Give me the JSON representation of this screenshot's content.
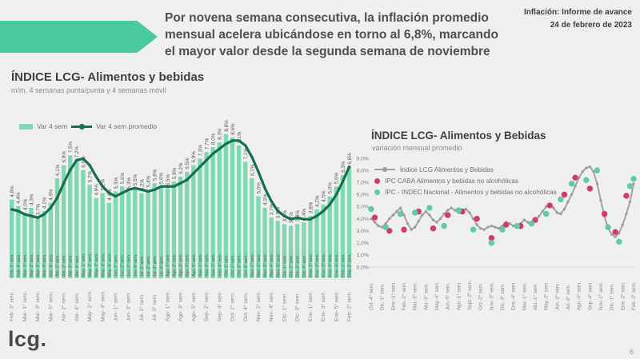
{
  "header": {
    "report_title": "Inflación: Informe de avance",
    "report_date": "24 de febrero de 2023",
    "headline": "Por novena semana consecutiva, la inflación promedio\nmensual acelera ubicándose en torno al 6,8%, marcando\nel mayor valor desde la segunda semana de noviembre"
  },
  "footer": {
    "logo": "lcg.",
    "page": "6"
  },
  "colors": {
    "background": "#efeff0",
    "accent_arrow": "#4bc99e",
    "bar_fill": "#7ed9b2",
    "avg_line": "#14714d",
    "lcg_line": "#a3a3a3",
    "caba_dot": "#d13a6e",
    "indec_dot": "#5ecda3",
    "label_dark": "#555555",
    "label_gray": "#8a8a8a"
  },
  "chart_data": [
    {
      "type": "bar",
      "title": "ÍNDICE LCG- Alimentos y bebidas",
      "subtitle": "m/m. 4 semanas punta/punta y 4 semanas móvil",
      "unit": "%",
      "ylim": [
        0,
        9.2
      ],
      "grid": false,
      "value_labels": true,
      "tick_every": 2,
      "legend_position": "top-left",
      "categories": [
        "Feb- 3° sem.",
        "Feb- 4° sem.",
        "Mar- 1° sem.",
        "Mar- 2° sem.",
        "Mar- 3° sem.",
        "Mar- 4° sem.",
        "Mar- 5° sem.",
        "Abr- 1° sem.",
        "Abr- 2° sem.",
        "Abr- 3° sem.",
        "Abr- 4° sem.",
        "May- 1° sem.",
        "May- 2° sem.",
        "May- 3° sem.",
        "May- 4° sem.",
        "May- 5° sem.",
        "Jun- 1° sem.",
        "Jun- 2° sem.",
        "Jun- 3° sem.",
        "Jun- 4° sem.",
        "Jul- 1° sem.",
        "Jul- 2° sem.",
        "Jul- 3° sem.",
        "Jul- 4° sem.",
        "Ago- 1° sem.",
        "Ago- 2° sem.",
        "Ago- 3° sem.",
        "Ago- 4° sem.",
        "Ago- 5° sem.",
        "Sep- 1° sem.",
        "Sep- 2° sem.",
        "Sep- 3° sem.",
        "Sep- 4° sem.",
        "Oct- 1° sem.",
        "Oct- 2° sem.",
        "Oct- 3° sem.",
        "Oct- 4° sem.",
        "Nov- 1° sem.",
        "Nov- 2° sem.",
        "Nov- 3° sem.",
        "Nov- 4° sem.",
        "Nov- 5° sem.",
        "Dic- 1° sem.",
        "Dic- 2° sem.",
        "Dic- 3° sem.",
        "Dic- 4° sem.",
        "Ene- 1° sem.",
        "Ene- 2° sem.",
        "Ene- 3° sem.",
        "Ene- 4° sem.",
        "Ene- 5° sem.",
        "Feb- 1° sem.",
        "Feb- 2° sem."
      ],
      "series": [
        {
          "name": "Var 4 sem",
          "type": "bar",
          "values": [
            4.8,
            4.4,
            4.0,
            4.3,
            3.7,
            4.1,
            4.6,
            6.1,
            6.9,
            7.5,
            7.2,
            6.6,
            5.7,
            4.9,
            5.2,
            4.6,
            5.3,
            5.6,
            5.3,
            5.5,
            5.2,
            5.4,
            5.8,
            5.6,
            5.5,
            5.9,
            6.2,
            6.5,
            6.9,
            7.3,
            7.7,
            8.0,
            8.3,
            8.8,
            8.6,
            8.1,
            7.1,
            6.1,
            5.0,
            4.3,
            3.7,
            3.5,
            3.3,
            3.2,
            3.3,
            3.4,
            3.8,
            4.2,
            4.5,
            5.0,
            5.6,
            6.3,
            6.8
          ]
        },
        {
          "name": "Var 4 sem promedio",
          "type": "line",
          "values": [
            4.2,
            4.1,
            3.9,
            3.8,
            3.7,
            3.9,
            4.3,
            4.9,
            5.8,
            6.6,
            7.2,
            7.3,
            6.9,
            6.2,
            5.6,
            5.2,
            5.0,
            5.2,
            5.4,
            5.5,
            5.4,
            5.3,
            5.4,
            5.6,
            5.6,
            5.6,
            5.8,
            6.0,
            6.4,
            6.8,
            7.2,
            7.6,
            7.9,
            8.2,
            8.4,
            8.4,
            8.1,
            7.4,
            6.5,
            5.5,
            4.7,
            4.1,
            3.8,
            3.6,
            3.7,
            3.6,
            3.6,
            3.8,
            4.1,
            4.5,
            5.1,
            5.9,
            6.8
          ]
        }
      ]
    },
    {
      "type": "line",
      "title": "ÍNDICE LCG- Alimentos y Bebidas",
      "subtitle": "variación mensual promedio",
      "unit": "%",
      "ylim": [
        0,
        9
      ],
      "ytick_step": 1,
      "grid": false,
      "tick_every": 3,
      "legend_position": "top-left-inside",
      "x_tick_labels": [
        "Oct.-4° sem.",
        "Dic.-1° sem.",
        "Ene.-1° sem.",
        "Feb.-2° sem.",
        "Mar.-3° sem.",
        "Abr.-3° sem.",
        "May.-4° sem.",
        "Jun.-5° sem.",
        "Ago.-1° sem.",
        "Sept.-2° sem.",
        "Oct.-2° sem.",
        "Nov.-3° sem.",
        "Dic.-3° sem.",
        "Ene.-4° sem.",
        "Mar.-1° sem.",
        "Abr.-1° sem.",
        "May.-2° sem.",
        "Jun.-2° sem.",
        "Jul.-3° sem.",
        "Ago.-4° sem.",
        "Sep.-4° sem.",
        "Nov.-1° sem.",
        "Dic.-1° sem.",
        "Ene.-2° sem.",
        "Feb.-2° sem."
      ],
      "series": [
        {
          "name": "Índice LCG Alimentos y Bebidas",
          "type": "line",
          "color_key": "lcg_line",
          "values": [
            4.0,
            3.7,
            3.4,
            3.3,
            3.6,
            4.0,
            4.3,
            4.6,
            4.9,
            4.3,
            3.6,
            3.1,
            3.3,
            3.8,
            4.3,
            4.6,
            4.3,
            3.9,
            3.7,
            4.0,
            4.4,
            4.7,
            4.9,
            4.7,
            4.5,
            4.7,
            4.8,
            4.5,
            4.0,
            3.5,
            3.2,
            3.1,
            3.3,
            3.4,
            3.3,
            3.2,
            3.4,
            3.7,
            3.6,
            3.4,
            3.3,
            3.6,
            3.9,
            3.7,
            3.5,
            3.8,
            4.2,
            4.6,
            5.0,
            5.2,
            4.9,
            4.5,
            4.4,
            4.8,
            5.4,
            6.0,
            6.7,
            7.4,
            7.9,
            8.2,
            8.3,
            7.9,
            6.9,
            5.5,
            4.2,
            3.2,
            2.7,
            2.5,
            2.8,
            3.5,
            4.4,
            5.4,
            6.9
          ]
        },
        {
          "name": "IPC CABA Alimentos y bebidas no alcohólicas",
          "type": "scatter",
          "color_key": "caba_dot",
          "points": [
            [
              1,
              4.1
            ],
            [
              5,
              3.0
            ],
            [
              9,
              3.1
            ],
            [
              13,
              4.6
            ],
            [
              17,
              3.2
            ],
            [
              21,
              4.3
            ],
            [
              25,
              4.6
            ],
            [
              29,
              4.0
            ],
            [
              33,
              2.4
            ],
            [
              37,
              3.5
            ],
            [
              41,
              3.4
            ],
            [
              45,
              3.9
            ],
            [
              49,
              5.1
            ],
            [
              53,
              6.0
            ],
            [
              56,
              7.4
            ],
            [
              60,
              6.5
            ],
            [
              64,
              4.4
            ],
            [
              67,
              2.9
            ],
            [
              70,
              5.9
            ]
          ]
        },
        {
          "name": "IPC - INDEC Nacional - Alimentos y bebidas no alcohólicas",
          "type": "scatter",
          "color_key": "indec_dot",
          "points": [
            [
              0,
              4.8
            ],
            [
              4,
              3.3
            ],
            [
              8,
              4.4
            ],
            [
              12,
              4.5
            ],
            [
              16,
              4.9
            ],
            [
              20,
              3.4
            ],
            [
              24,
              4.7
            ],
            [
              28,
              3.1
            ],
            [
              33,
              2.0
            ],
            [
              36,
              3.1
            ],
            [
              40,
              3.4
            ],
            [
              44,
              3.6
            ],
            [
              48,
              4.4
            ],
            [
              52,
              5.6
            ],
            [
              55,
              6.9
            ],
            [
              59,
              7.2
            ],
            [
              62,
              8.0
            ],
            [
              65,
              3.3
            ],
            [
              68,
              2.1
            ],
            [
              71,
              6.7
            ],
            [
              72,
              7.3
            ]
          ]
        }
      ]
    }
  ]
}
